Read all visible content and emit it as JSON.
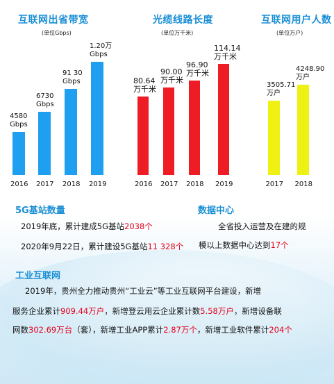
{
  "colors": {
    "title": "#1a8fd6",
    "bar_blue": "#1e9ff0",
    "bar_red": "#ee1c24",
    "bar_yellow": "#eef112",
    "highlight": "#e4001b"
  },
  "chart_data": [
    {
      "type": "bar",
      "title": "互联网出省带宽",
      "unit_note": "(单位Gbps)",
      "categories": [
        "2016",
        "2017",
        "2018",
        "2019"
      ],
      "values": [
        4580,
        6730,
        9130,
        12000
      ],
      "value_labels": [
        [
          "4580",
          "Gbps"
        ],
        [
          "6730",
          "Gbps"
        ],
        [
          "91 30",
          "Gbps"
        ],
        [
          "1.20万",
          "Gbps"
        ]
      ],
      "ylim": [
        0,
        12000
      ]
    },
    {
      "type": "bar",
      "title": "光缆线路长度",
      "unit_note": "(单位万千米)",
      "categories": [
        "2016",
        "2017",
        "2018",
        "2019"
      ],
      "values": [
        80.64,
        90.0,
        96.9,
        114.14
      ],
      "value_labels": [
        [
          "80.64",
          "万千米"
        ],
        [
          "90.00",
          "万千米"
        ],
        [
          "96.90",
          "万千米"
        ],
        [
          "114.14",
          "万千米"
        ]
      ],
      "ylim": [
        0,
        114.14
      ]
    },
    {
      "type": "bar",
      "title": "互联网用户人数",
      "unit_note": "(单位万户)",
      "categories": [
        "2017",
        "2018"
      ],
      "values": [
        3505.71,
        4248.9
      ],
      "value_labels": [
        [
          "3505.71",
          "万户"
        ],
        [
          "4248.90",
          "万户"
        ]
      ],
      "ylim": [
        0,
        4248.9
      ]
    }
  ],
  "sections": {
    "g5": {
      "title": "5G基站数量",
      "line1": {
        "pre": "2019年底，累计建成5G基站",
        "hl": "2038个"
      },
      "line2": {
        "pre": "2020年9月22日，累计建设5G基站",
        "hl": "11 328个"
      }
    },
    "dc": {
      "title": "数据中心",
      "line1": "全省投入运营及在建的规",
      "line2": {
        "pre": "模以上数据中心达到",
        "hl": "17个"
      }
    },
    "ii": {
      "title": "工业互联网",
      "line1": "2019年，贵州全力推动贵州“工业云”等工业互联网平台建设，新增",
      "line2": {
        "t1": "服务企业累计",
        "h1": "909.44万户",
        "t2": "，新增登云用云企业累计数",
        "h2": "5.58万户",
        "t3": "，新增设备联"
      },
      "line3": {
        "t1": "网数",
        "h1": "302.69万台",
        "t2": "（套），新增工业APP累计",
        "h2": "2.87万个",
        "t3": "，新增工业软件累计",
        "h3": "204个"
      }
    }
  }
}
